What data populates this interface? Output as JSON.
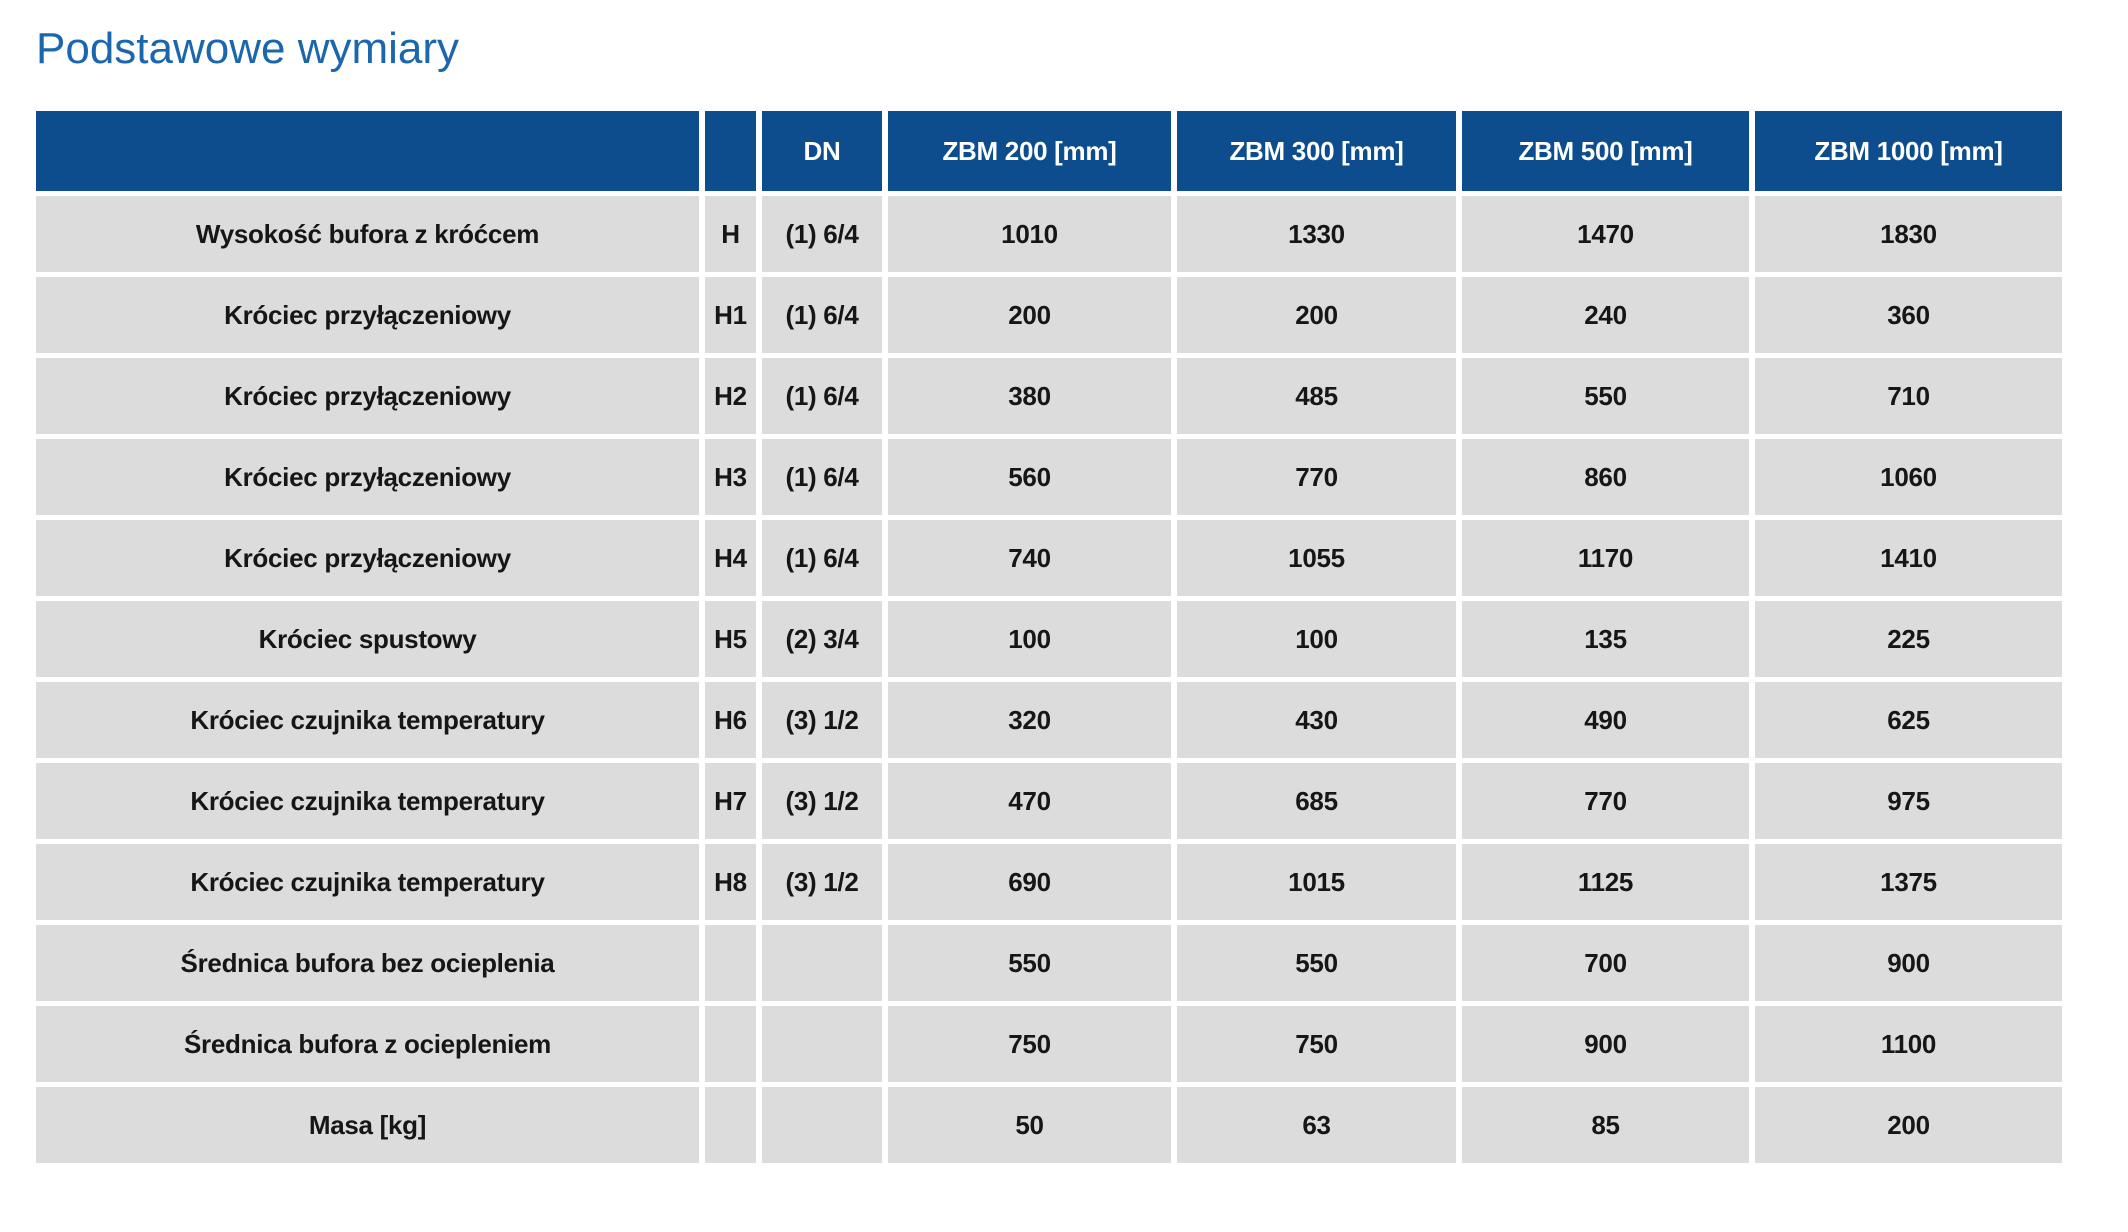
{
  "title": "Podstawowe wymiary",
  "colors": {
    "header_bg": "#0d4c8d",
    "row_bg": "#dcdcdc",
    "title_text": "#1b67ae",
    "header_text": "#ffffff",
    "cell_text": "#161616"
  },
  "table": {
    "headers": [
      "",
      "",
      "DN",
      "ZBM 200 [mm]",
      "ZBM 300 [mm]",
      "ZBM 500 [mm]",
      "ZBM 1000 [mm]"
    ],
    "rows": [
      {
        "label": "Wysokość bufora z króćcem",
        "symbol": "H",
        "dn": "(1) 6/4",
        "values": [
          "1010",
          "1330",
          "1470",
          "1830"
        ]
      },
      {
        "label": "Króciec przyłączeniowy",
        "symbol": "H1",
        "dn": "(1) 6/4",
        "values": [
          "200",
          "200",
          "240",
          "360"
        ]
      },
      {
        "label": "Króciec przyłączeniowy",
        "symbol": "H2",
        "dn": "(1) 6/4",
        "values": [
          "380",
          "485",
          "550",
          "710"
        ]
      },
      {
        "label": "Króciec przyłączeniowy",
        "symbol": "H3",
        "dn": "(1) 6/4",
        "values": [
          "560",
          "770",
          "860",
          "1060"
        ]
      },
      {
        "label": "Króciec przyłączeniowy",
        "symbol": "H4",
        "dn": "(1) 6/4",
        "values": [
          "740",
          "1055",
          "1170",
          "1410"
        ]
      },
      {
        "label": "Króciec spustowy",
        "symbol": "H5",
        "dn": "(2) 3/4",
        "values": [
          "100",
          "100",
          "135",
          "225"
        ]
      },
      {
        "label": "Króciec czujnika temperatury",
        "symbol": "H6",
        "dn": "(3) 1/2",
        "values": [
          "320",
          "430",
          "490",
          "625"
        ]
      },
      {
        "label": "Króciec czujnika temperatury",
        "symbol": "H7",
        "dn": "(3) 1/2",
        "values": [
          "470",
          "685",
          "770",
          "975"
        ]
      },
      {
        "label": "Króciec czujnika temperatury",
        "symbol": "H8",
        "dn": "(3) 1/2",
        "values": [
          "690",
          "1015",
          "1125",
          "1375"
        ]
      },
      {
        "label": "Średnica bufora bez ocieplenia",
        "symbol": "",
        "dn": "",
        "values": [
          "550",
          "550",
          "700",
          "900"
        ]
      },
      {
        "label": "Średnica bufora z ociepleniem",
        "symbol": "",
        "dn": "",
        "values": [
          "750",
          "750",
          "900",
          "1100"
        ]
      },
      {
        "label": "Masa [kg]",
        "symbol": "",
        "dn": "",
        "values": [
          "50",
          "63",
          "85",
          "200"
        ]
      }
    ]
  }
}
